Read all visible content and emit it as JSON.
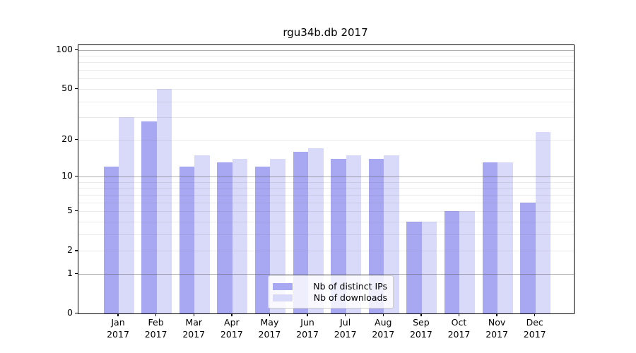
{
  "title": "rgu34b.db 2017",
  "chart_data": {
    "type": "bar",
    "title": "rgu34b.db 2017",
    "categories": [
      "Jan 2017",
      "Feb 2017",
      "Mar 2017",
      "Apr 2017",
      "May 2017",
      "Jun 2017",
      "Jul 2017",
      "Aug 2017",
      "Sep 2017",
      "Oct 2017",
      "Nov 2017",
      "Dec 2017"
    ],
    "series": [
      {
        "name": "Nb of distinct IPs",
        "color": "#a8a8f2",
        "values": [
          12,
          28,
          12,
          13,
          12,
          16,
          14,
          14,
          4,
          5,
          13,
          6
        ]
      },
      {
        "name": "Nb of downloads",
        "color": "#d9d9f9",
        "values": [
          30,
          50,
          15,
          14,
          14,
          17,
          15,
          15,
          4,
          5,
          13,
          23
        ]
      }
    ],
    "xlabel": "",
    "ylabel": "",
    "yscale": "log1p",
    "ylim": [
      0,
      108.6
    ],
    "y_ticks": [
      100,
      50,
      20,
      10,
      5,
      2,
      1,
      0
    ],
    "y_minor_ticks": [
      3,
      4,
      6,
      7,
      8,
      9,
      30,
      40,
      60,
      70,
      80,
      90
    ],
    "y_decade_ticks": [
      1,
      10,
      100
    ],
    "grid": true,
    "legend_position": "lower center"
  },
  "legend": {
    "entries": [
      {
        "label": "Nb of distinct IPs",
        "color": "#a8a8f2"
      },
      {
        "label": "Nb of downloads",
        "color": "#d9d9f9"
      }
    ]
  },
  "colors": {
    "background": "#ffffff",
    "spine": "#000000",
    "grid_minor": "#e4e4e4",
    "grid_decade": "#9e9e9e",
    "text": "#000000",
    "legend_border": "#cccccc"
  }
}
